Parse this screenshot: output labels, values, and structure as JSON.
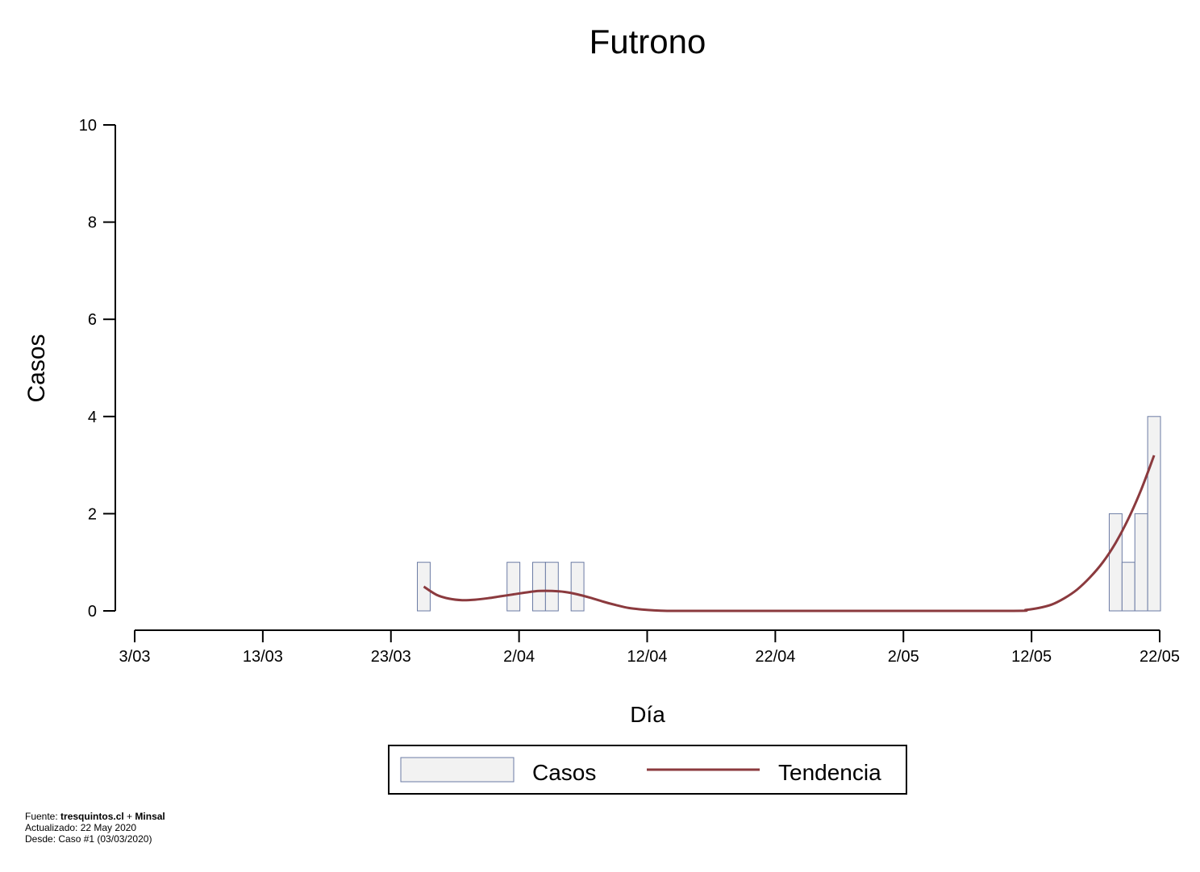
{
  "chart_data": {
    "type": "bar",
    "title": "Futrono",
    "xlabel": "Día",
    "ylabel": "Casos",
    "ylim": [
      0,
      10
    ],
    "y_ticks": [
      0,
      2,
      4,
      6,
      8,
      10
    ],
    "x_ticks": [
      "3/03",
      "13/03",
      "23/03",
      "2/04",
      "12/04",
      "22/04",
      "2/05",
      "12/05",
      "22/05"
    ],
    "x_range_days": [
      0,
      80
    ],
    "grid": false,
    "legend_position": "bottom-center",
    "series": [
      {
        "name": "Casos",
        "kind": "bar",
        "points": [
          {
            "date": "25/03",
            "value": 1
          },
          {
            "date": "1/04",
            "value": 1
          },
          {
            "date": "3/04",
            "value": 1
          },
          {
            "date": "4/04",
            "value": 1
          },
          {
            "date": "6/04",
            "value": 1
          },
          {
            "date": "18/05",
            "value": 2
          },
          {
            "date": "19/05",
            "value": 1
          },
          {
            "date": "20/05",
            "value": 2
          },
          {
            "date": "21/05",
            "value": 4
          }
        ]
      },
      {
        "name": "Tendencia",
        "kind": "line",
        "points": [
          {
            "date": "25/03",
            "value": 0.5
          },
          {
            "date": "26/03",
            "value": 0.33
          },
          {
            "date": "27/03",
            "value": 0.25
          },
          {
            "date": "28/03",
            "value": 0.22
          },
          {
            "date": "29/03",
            "value": 0.23
          },
          {
            "date": "30/03",
            "value": 0.26
          },
          {
            "date": "31/03",
            "value": 0.3
          },
          {
            "date": "1/04",
            "value": 0.34
          },
          {
            "date": "2/04",
            "value": 0.38
          },
          {
            "date": "3/04",
            "value": 0.41
          },
          {
            "date": "4/04",
            "value": 0.41
          },
          {
            "date": "5/04",
            "value": 0.39
          },
          {
            "date": "6/04",
            "value": 0.34
          },
          {
            "date": "7/04",
            "value": 0.27
          },
          {
            "date": "8/04",
            "value": 0.19
          },
          {
            "date": "9/04",
            "value": 0.12
          },
          {
            "date": "10/04",
            "value": 0.06
          },
          {
            "date": "11/04",
            "value": 0.03
          },
          {
            "date": "12/04",
            "value": 0.01
          },
          {
            "date": "13/04",
            "value": 0.0
          },
          {
            "date": "14/04",
            "value": 0.0
          },
          {
            "date": "20/04",
            "value": 0.0
          },
          {
            "date": "30/04",
            "value": 0.0
          },
          {
            "date": "10/05",
            "value": 0.0
          },
          {
            "date": "11/05",
            "value": 0.02
          },
          {
            "date": "12/05",
            "value": 0.06
          },
          {
            "date": "13/05",
            "value": 0.13
          },
          {
            "date": "14/05",
            "value": 0.26
          },
          {
            "date": "15/05",
            "value": 0.44
          },
          {
            "date": "16/05",
            "value": 0.69
          },
          {
            "date": "17/05",
            "value": 1.0
          },
          {
            "date": "18/05",
            "value": 1.4
          },
          {
            "date": "19/05",
            "value": 1.9
          },
          {
            "date": "20/05",
            "value": 2.5
          },
          {
            "date": "21/05",
            "value": 3.2
          }
        ]
      }
    ],
    "colors": {
      "bar_fill": "#f2f2f2",
      "bar_stroke": "#6b7ba4",
      "trend": "#8b3a3e"
    }
  },
  "footer": {
    "source_prefix": "Fuente: ",
    "source_site": "tresquintos.cl",
    "source_join": " + ",
    "source_org": "Minsal",
    "updated": "Actualizado: 22 May 2020",
    "since": "Desde: Caso #1  (03/03/2020)"
  }
}
